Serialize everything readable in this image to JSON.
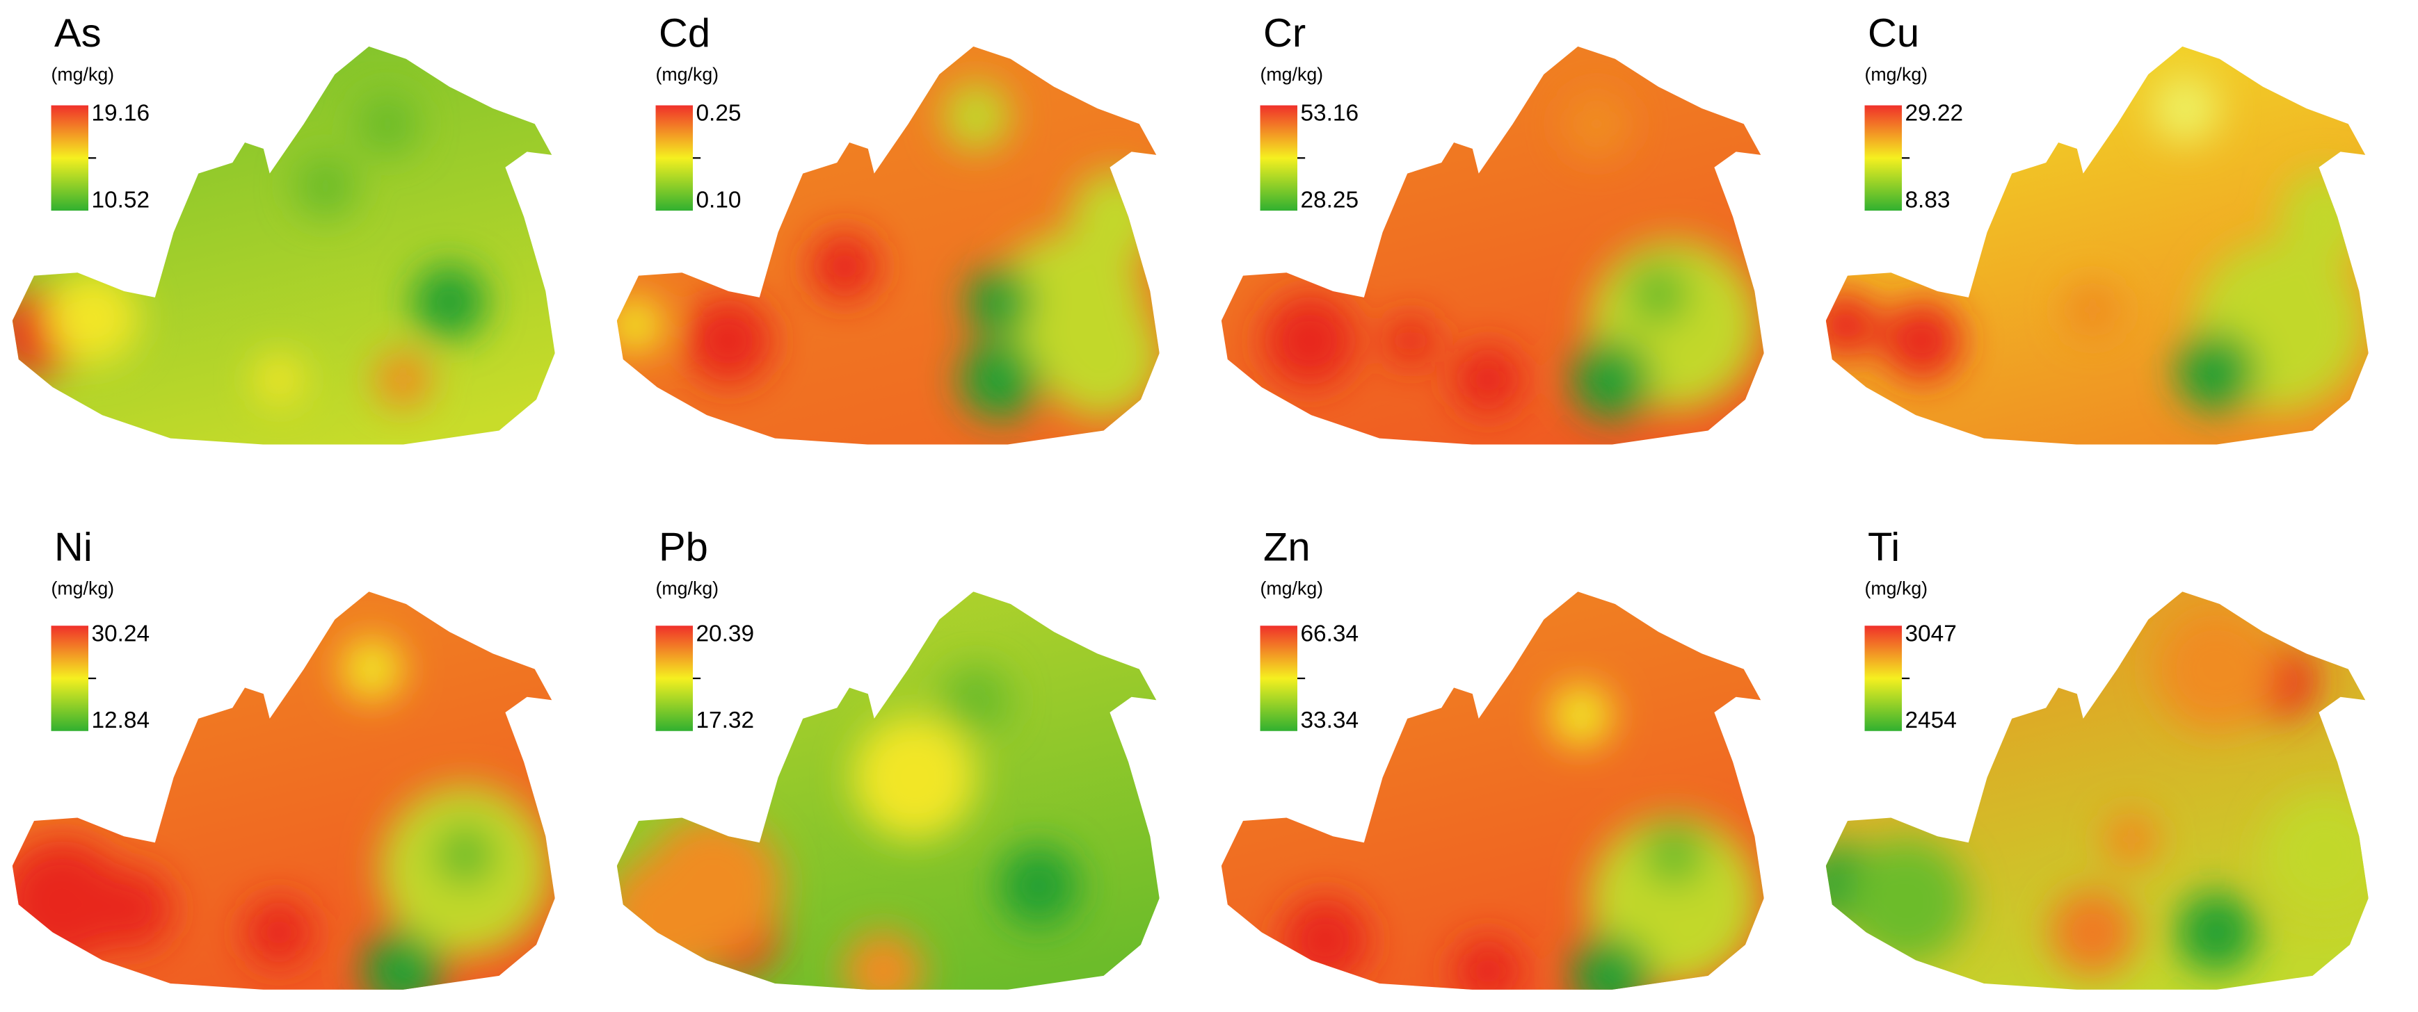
{
  "panels": [
    {
      "element": "As",
      "unit": "(mg/kg)",
      "max": "19.16",
      "min": "10.52"
    },
    {
      "element": "Cd",
      "unit": "(mg/kg)",
      "max": "0.25",
      "min": "0.10"
    },
    {
      "element": "Cr",
      "unit": "(mg/kg)",
      "max": "53.16",
      "min": "28.25"
    },
    {
      "element": "Cu",
      "unit": "(mg/kg)",
      "max": "29.22",
      "min": "8.83"
    },
    {
      "element": "Ni",
      "unit": "(mg/kg)",
      "max": "30.24",
      "min": "12.84"
    },
    {
      "element": "Pb",
      "unit": "(mg/kg)",
      "max": "20.39",
      "min": "17.32"
    },
    {
      "element": "Zn",
      "unit": "(mg/kg)",
      "max": "66.34",
      "min": "33.34"
    },
    {
      "element": "Ti",
      "unit": "(mg/kg)",
      "max": "3047",
      "min": "2454"
    }
  ]
}
